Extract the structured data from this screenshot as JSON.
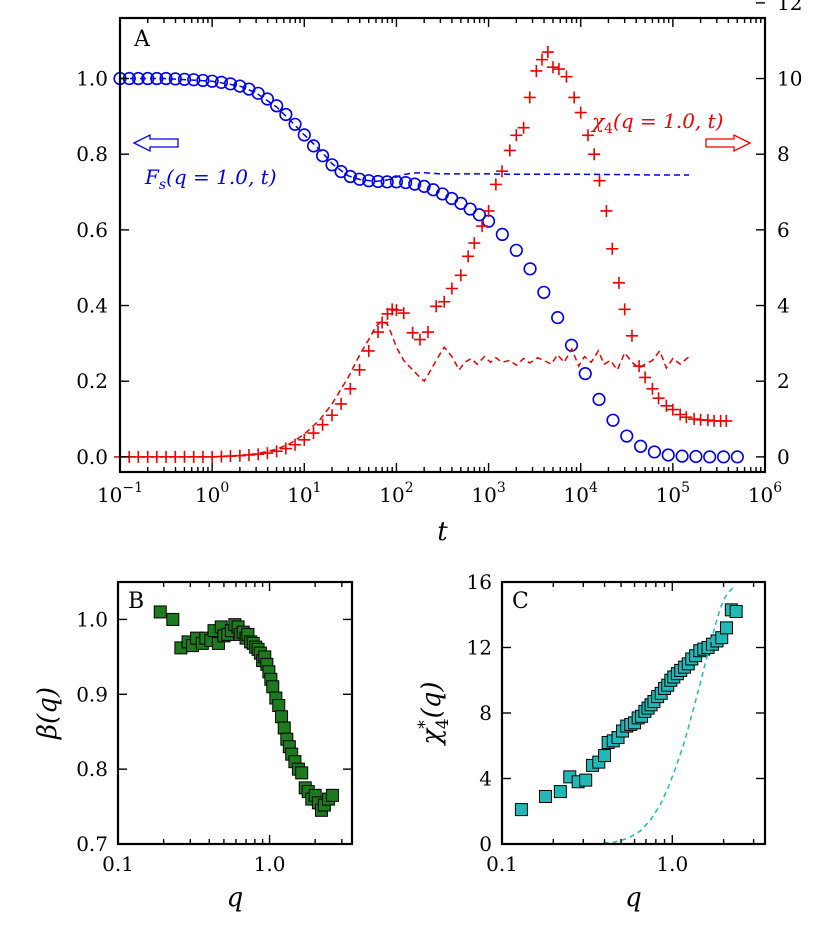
{
  "chart_data": [
    {
      "type": "scatter",
      "panel_label": "A",
      "xlabel": "t",
      "x_scale": "log",
      "xlim": [
        0.1,
        1000000
      ],
      "ylim_left": [
        -0.04,
        1.16
      ],
      "ylim_right": [
        -0.4,
        11.6
      ],
      "x_ticks": [
        0.1,
        1,
        10,
        100,
        1000,
        10000,
        100000,
        1000000
      ],
      "x_tick_labels": [
        {
          "base": "10",
          "exp": "−1"
        },
        {
          "base": "10",
          "exp": "0"
        },
        {
          "base": "10",
          "exp": "1"
        },
        {
          "base": "10",
          "exp": "2"
        },
        {
          "base": "10",
          "exp": "3"
        },
        {
          "base": "10",
          "exp": "4"
        },
        {
          "base": "10",
          "exp": "5"
        },
        {
          "base": "10",
          "exp": "6"
        }
      ],
      "y_left_ticks": [
        0.0,
        0.2,
        0.4,
        0.6,
        0.8,
        1.0
      ],
      "y_left_tick_labels": [
        "0.0",
        "0.2",
        "0.4",
        "0.6",
        "0.8",
        "1.0"
      ],
      "y_right_ticks": [
        0,
        2,
        4,
        6,
        8,
        10,
        12
      ],
      "y_right_tick_labels": [
        "0",
        "2",
        "4",
        "6",
        "8",
        "10",
        "12"
      ],
      "annotations": {
        "fs_label": "F",
        "fs_sub": "s",
        "fs_args": "(q = 1.0, t)",
        "chi_label": "χ",
        "chi_sub": "4",
        "chi_args": "(q = 1.0, t)"
      },
      "series": [
        {
          "name": "Fs(q=1.0,t)",
          "axis": "left",
          "marker": "circle",
          "color": "#0000ee",
          "x": [
            0.1,
            0.126,
            0.158,
            0.2,
            0.251,
            0.316,
            0.398,
            0.501,
            0.631,
            0.794,
            1,
            1.26,
            1.58,
            2,
            2.51,
            3.16,
            3.98,
            5.01,
            6.31,
            7.94,
            10,
            12.6,
            15.8,
            20,
            25.1,
            31.6,
            39.8,
            50.1,
            63.1,
            79.4,
            100,
            126,
            158,
            200,
            251,
            316,
            398,
            501,
            631,
            794,
            1000,
            1410,
            2000,
            2820,
            3980,
            5620,
            7940,
            11200,
            15800,
            22400,
            31600,
            44700,
            63100,
            89100,
            126000,
            178000,
            251000,
            355000,
            501000
          ],
          "y": [
            1.0,
            1.0,
            1.0,
            1.0,
            1.0,
            1.0,
            0.999,
            0.998,
            0.997,
            0.995,
            0.993,
            0.99,
            0.986,
            0.98,
            0.972,
            0.961,
            0.946,
            0.928,
            0.905,
            0.879,
            0.851,
            0.822,
            0.796,
            0.772,
            0.754,
            0.741,
            0.734,
            0.73,
            0.728,
            0.727,
            0.727,
            0.725,
            0.721,
            0.715,
            0.706,
            0.695,
            0.683,
            0.67,
            0.655,
            0.64,
            0.623,
            0.588,
            0.546,
            0.497,
            0.435,
            0.368,
            0.295,
            0.22,
            0.152,
            0.097,
            0.055,
            0.028,
            0.013,
            0.005,
            0.002,
            0.001,
            0.0,
            0.0,
            0.0
          ]
        },
        {
          "name": "Fs dashed",
          "axis": "left",
          "style": "dashed",
          "color": "#0000ee",
          "x": [
            0.1,
            0.3,
            1,
            2,
            3,
            5,
            7,
            10,
            15,
            20,
            30,
            40,
            60,
            80,
            100,
            120,
            150,
            200,
            300,
            400,
            600,
            800,
            1000,
            2000,
            5000,
            10000,
            30000,
            60000,
            100000,
            150000
          ],
          "y": [
            1.0,
            1.0,
            0.993,
            0.98,
            0.962,
            0.925,
            0.89,
            0.851,
            0.81,
            0.775,
            0.743,
            0.733,
            0.728,
            0.732,
            0.74,
            0.746,
            0.75,
            0.751,
            0.748,
            0.748,
            0.748,
            0.748,
            0.748,
            0.747,
            0.747,
            0.747,
            0.746,
            0.745,
            0.745,
            0.745
          ]
        },
        {
          "name": "χ4(q=1.0,t)",
          "axis": "right",
          "marker": "plus",
          "color": "#ee0000",
          "x": [
            0.1,
            0.126,
            0.158,
            0.2,
            0.251,
            0.316,
            0.398,
            0.501,
            0.631,
            0.794,
            1,
            1.26,
            1.58,
            2,
            2.51,
            3.16,
            3.98,
            5.01,
            6.31,
            7.94,
            10,
            12.6,
            15.8,
            20,
            25.1,
            31.6,
            39.8,
            50.1,
            63.1,
            70,
            80,
            90,
            100,
            120,
            150,
            180,
            220,
            270,
            330,
            400,
            500,
            600,
            700,
            850,
            1000,
            1200,
            1400,
            1700,
            2000,
            2400,
            2800,
            3300,
            3800,
            4400,
            5000,
            5800,
            7000,
            8500,
            10000,
            12000,
            14000,
            16000,
            19000,
            22000,
            26000,
            30000,
            36000,
            43000,
            50000,
            60000,
            70000,
            85000,
            100000,
            120000,
            140000,
            170000,
            200000,
            240000,
            280000,
            330000,
            380000
          ],
          "y": [
            0.0,
            0.0,
            0.0,
            0.0,
            0.0,
            0.0,
            0.0,
            0.0,
            0.0,
            0.0,
            0.0,
            0.01,
            0.02,
            0.03,
            0.05,
            0.07,
            0.1,
            0.15,
            0.22,
            0.32,
            0.45,
            0.63,
            0.85,
            1.1,
            1.4,
            1.8,
            2.3,
            2.8,
            3.3,
            3.55,
            3.78,
            3.9,
            3.88,
            3.8,
            3.28,
            3.1,
            3.3,
            3.98,
            4.1,
            4.45,
            4.8,
            5.3,
            5.65,
            6.1,
            6.5,
            7.2,
            7.55,
            8.1,
            8.5,
            8.7,
            9.5,
            10.2,
            10.5,
            10.7,
            10.3,
            10.25,
            10.05,
            9.5,
            9.1,
            8.5,
            8.0,
            7.3,
            6.5,
            5.5,
            4.6,
            3.9,
            3.2,
            2.4,
            2.1,
            1.8,
            1.55,
            1.35,
            1.25,
            1.12,
            1.05,
            1.0,
            0.98,
            0.97,
            0.95,
            0.95,
            0.95
          ]
        },
        {
          "name": "χ4 dashed",
          "axis": "right",
          "style": "dashed",
          "color": "#ee0000",
          "x": [
            0.1,
            1,
            2,
            3,
            5,
            7,
            10,
            15,
            20,
            30,
            40,
            50,
            60,
            70,
            80,
            90,
            100,
            120,
            150,
            180,
            200,
            230,
            270,
            330,
            400,
            480,
            550,
            650,
            750,
            900,
            1050,
            1200,
            1400,
            1700,
            2000,
            2400,
            2800,
            3400,
            4000,
            4800,
            5600,
            6600,
            8000,
            9500,
            11000,
            13000,
            15500,
            18000,
            21000,
            25000,
            30000,
            36000,
            43000,
            50000,
            60000,
            72000,
            85000,
            100000,
            120000,
            150000
          ],
          "y": [
            0.0,
            0.0,
            0.03,
            0.08,
            0.2,
            0.35,
            0.6,
            1.0,
            1.4,
            2.1,
            2.7,
            3.1,
            3.45,
            3.6,
            3.5,
            3.2,
            2.9,
            2.55,
            2.3,
            2.1,
            2.0,
            2.25,
            2.55,
            2.9,
            2.65,
            2.3,
            2.5,
            2.6,
            2.45,
            2.65,
            2.5,
            2.62,
            2.5,
            2.55,
            2.42,
            2.6,
            2.48,
            2.62,
            2.55,
            2.45,
            2.7,
            2.5,
            2.85,
            2.4,
            2.65,
            2.5,
            2.8,
            2.45,
            2.55,
            2.3,
            2.75,
            2.5,
            2.35,
            2.45,
            2.55,
            2.8,
            2.35,
            2.6,
            2.45,
            2.65
          ]
        }
      ]
    },
    {
      "type": "scatter",
      "panel_label": "B",
      "xlabel": "q",
      "ylabel": "β(q)",
      "ylabel_main": "β",
      "ylabel_args": "(q)",
      "x_scale": "log",
      "xlim": [
        0.1,
        3.5
      ],
      "ylim": [
        0.7,
        1.05
      ],
      "x_ticks": [
        0.1,
        1.0
      ],
      "x_tick_labels": [
        "0.1",
        "1.0"
      ],
      "y_ticks": [
        0.7,
        0.8,
        0.9,
        1.0
      ],
      "y_tick_labels": [
        "0.7",
        "0.8",
        "0.9",
        "1.0"
      ],
      "series": [
        {
          "name": "β(q)",
          "marker": "square",
          "color": "#1e7a1e",
          "x": [
            0.19,
            0.23,
            0.26,
            0.29,
            0.31,
            0.33,
            0.36,
            0.38,
            0.41,
            0.43,
            0.46,
            0.48,
            0.5,
            0.53,
            0.56,
            0.59,
            0.62,
            0.64,
            0.67,
            0.7,
            0.72,
            0.75,
            0.78,
            0.81,
            0.84,
            0.87,
            0.9,
            0.93,
            0.96,
            0.99,
            1.02,
            1.05,
            1.1,
            1.15,
            1.2,
            1.25,
            1.3,
            1.35,
            1.4,
            1.47,
            1.55,
            1.63,
            1.72,
            1.8,
            1.9,
            2.0,
            2.1,
            2.2,
            2.3,
            2.45,
            2.6
          ],
          "y": [
            1.01,
            1.0,
            0.962,
            0.97,
            0.965,
            0.975,
            0.968,
            0.975,
            0.972,
            0.985,
            0.968,
            0.99,
            0.978,
            0.98,
            0.985,
            0.993,
            0.99,
            0.98,
            0.983,
            0.975,
            0.98,
            0.97,
            0.968,
            0.963,
            0.96,
            0.955,
            0.945,
            0.95,
            0.94,
            0.93,
            0.92,
            0.91,
            0.895,
            0.885,
            0.87,
            0.855,
            0.84,
            0.83,
            0.82,
            0.81,
            0.8,
            0.795,
            0.775,
            0.77,
            0.76,
            0.765,
            0.755,
            0.745,
            0.752,
            0.76,
            0.765
          ]
        }
      ]
    },
    {
      "type": "scatter",
      "panel_label": "C",
      "xlabel": "q",
      "ylabel": "χ4*(q)",
      "ylabel_main": "χ",
      "ylabel_sub": "4",
      "ylabel_sup": "*",
      "ylabel_args": "(q)",
      "x_scale": "log",
      "xlim": [
        0.1,
        3.5
      ],
      "ylim": [
        0,
        16
      ],
      "x_ticks": [
        0.1,
        1.0
      ],
      "x_tick_labels": [
        "0.1",
        "1.0"
      ],
      "y_ticks": [
        0,
        4,
        8,
        12,
        16
      ],
      "y_tick_labels": [
        "0",
        "4",
        "8",
        "12",
        "16"
      ],
      "series": [
        {
          "name": "χ4*(q)",
          "marker": "square",
          "color": "#22b8b8",
          "x": [
            0.13,
            0.18,
            0.22,
            0.25,
            0.28,
            0.31,
            0.34,
            0.37,
            0.4,
            0.42,
            0.45,
            0.48,
            0.51,
            0.54,
            0.57,
            0.6,
            0.63,
            0.66,
            0.69,
            0.72,
            0.75,
            0.78,
            0.82,
            0.86,
            0.9,
            0.94,
            0.98,
            1.02,
            1.07,
            1.12,
            1.18,
            1.24,
            1.3,
            1.37,
            1.45,
            1.53,
            1.62,
            1.72,
            1.83,
            1.95,
            2.08,
            2.22,
            2.37
          ],
          "y": [
            2.1,
            2.9,
            3.2,
            4.1,
            3.8,
            3.9,
            4.8,
            5.0,
            5.4,
            6.2,
            6.3,
            6.5,
            6.9,
            7.2,
            7.3,
            7.4,
            7.7,
            7.8,
            8.1,
            8.3,
            8.5,
            8.7,
            9.0,
            9.2,
            9.5,
            9.7,
            10.0,
            10.2,
            10.4,
            10.6,
            10.8,
            11.0,
            11.3,
            11.5,
            11.8,
            11.9,
            12.0,
            12.2,
            12.4,
            12.6,
            13.2,
            14.3,
            14.2
          ]
        },
        {
          "name": "χ4* dashed",
          "style": "dashed",
          "color": "#22b8b8",
          "x": [
            0.35,
            0.45,
            0.55,
            0.65,
            0.75,
            0.85,
            0.95,
            1.05,
            1.15,
            1.25,
            1.35,
            1.45,
            1.55,
            1.65,
            1.75,
            1.85,
            1.95,
            2.05,
            2.15,
            2.25,
            2.35
          ],
          "y": [
            0.0,
            0.1,
            0.35,
            0.8,
            1.5,
            2.4,
            3.5,
            4.7,
            5.9,
            7.2,
            8.5,
            9.7,
            10.9,
            12.0,
            13.0,
            13.9,
            14.6,
            15.1,
            15.4,
            15.6,
            15.7
          ]
        }
      ]
    }
  ]
}
